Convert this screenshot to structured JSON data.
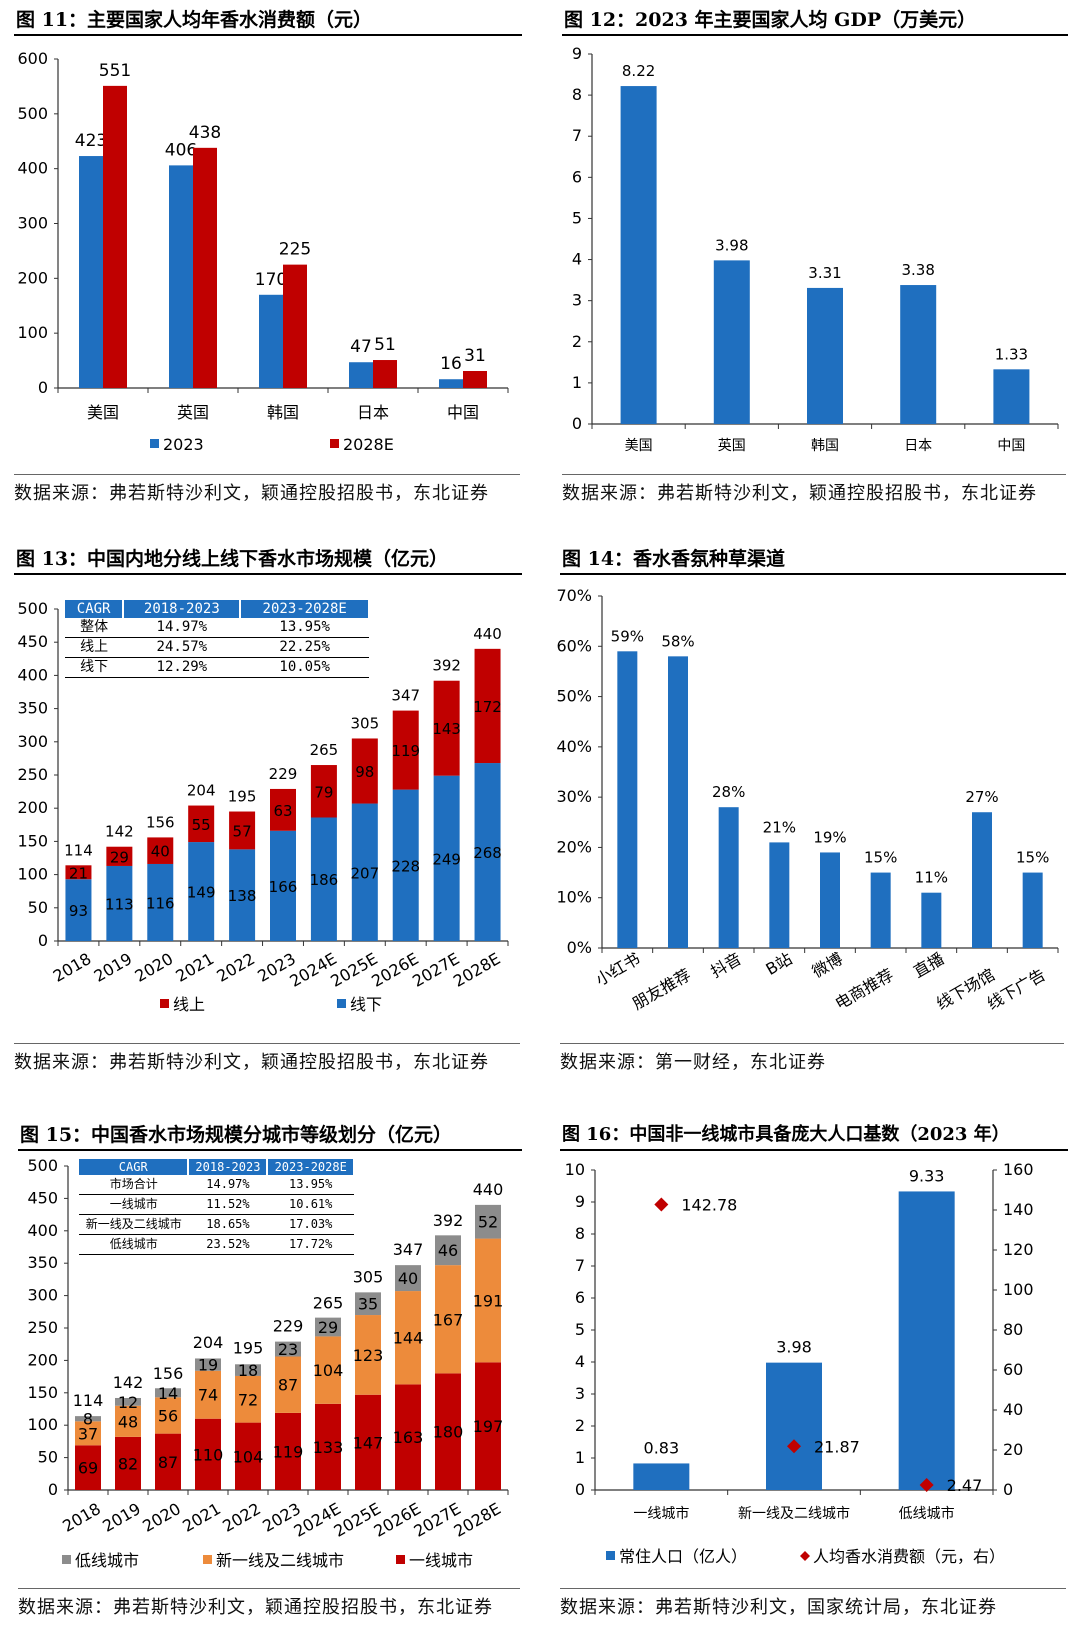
{
  "panels": [
    {
      "title": "图 11：主要国家人均年香水消费额（元）",
      "source": "数据来源：弗若斯特沙利文，颖通控股招股书，东北证券"
    },
    {
      "title": "图 12：2023 年主要国家人均 GDP（万美元）",
      "source": "数据来源：弗若斯特沙利文，颖通控股招股书，东北证券"
    },
    {
      "title": "图 13：中国内地分线上线下香水市场规模（亿元）",
      "source": "数据来源：弗若斯特沙利文，颖通控股招股书，东北证券"
    },
    {
      "title": "图 14：香水香氛种草渠道",
      "source": "数据来源：第一财经，东北证券"
    },
    {
      "title": "图 15：中国香水市场规模分城市等级划分（亿元）",
      "source": "数据来源：弗若斯特沙利文，颖通控股招股书，东北证券"
    },
    {
      "title": "图 16：中国非一线城市具备庞大人口基数（2023 年）",
      "source": "数据来源：弗若斯特沙利文，国家统计局，东北证券"
    }
  ],
  "chart_data": [
    {
      "type": "bar",
      "categories": [
        "美国",
        "英国",
        "韩国",
        "日本",
        "中国"
      ],
      "series": [
        {
          "name": "2023",
          "color": "#1f6fbf",
          "values": [
            423,
            406,
            170,
            47,
            16
          ]
        },
        {
          "name": "2028E",
          "color": "#c00000",
          "values": [
            551,
            438,
            225,
            51,
            31
          ]
        }
      ],
      "ylim": [
        0,
        600
      ],
      "y_ticks": [
        "0",
        "100",
        "200",
        "300",
        "400",
        "500",
        "600"
      ],
      "legend": "bottom"
    },
    {
      "type": "bar",
      "categories": [
        "美国",
        "英国",
        "韩国",
        "日本",
        "中国"
      ],
      "series": [
        {
          "color": "#1f6fbf",
          "values": [
            8.22,
            3.98,
            3.31,
            3.38,
            1.33
          ]
        }
      ],
      "ylim": [
        0,
        9
      ],
      "y_ticks": [
        "0",
        "1",
        "2",
        "3",
        "4",
        "5",
        "6",
        "7",
        "8",
        "9"
      ]
    },
    {
      "type": "bar",
      "stacked": true,
      "categories": [
        "2018",
        "2019",
        "2020",
        "2021",
        "2022",
        "2023",
        "2024E",
        "2025E",
        "2026E",
        "2027E",
        "2028E"
      ],
      "series": [
        {
          "name": "线下",
          "color": "#1f6fbf",
          "values": [
            93,
            113,
            116,
            149,
            138,
            166,
            186,
            207,
            228,
            249,
            268
          ]
        },
        {
          "name": "线上",
          "color": "#c00000",
          "values": [
            21,
            29,
            40,
            55,
            57,
            63,
            79,
            98,
            119,
            143,
            172
          ]
        }
      ],
      "totals": [
        114,
        142,
        156,
        204,
        195,
        229,
        265,
        305,
        347,
        392,
        440
      ],
      "ylim": [
        0,
        500
      ],
      "y_ticks": [
        "0",
        "50",
        "100",
        "150",
        "200",
        "250",
        "300",
        "350",
        "400",
        "450",
        "500"
      ],
      "legend": "bottom",
      "table": {
        "header": [
          "CAGR",
          "2018-2023",
          "2023-2028E"
        ],
        "rows": [
          [
            "整体",
            "14.97%",
            "13.95%"
          ],
          [
            "线上",
            "24.57%",
            "22.25%"
          ],
          [
            "线下",
            "12.29%",
            "10.05%"
          ]
        ]
      }
    },
    {
      "type": "bar",
      "categories": [
        "小红书",
        "朋友推荐",
        "抖音",
        "B站",
        "微博",
        "电商推荐",
        "直播",
        "线下场馆",
        "线下广告"
      ],
      "series": [
        {
          "color": "#1f6fbf",
          "values": [
            59,
            58,
            28,
            21,
            19,
            15,
            11,
            27,
            15
          ]
        }
      ],
      "value_suffix": "%",
      "ylim": [
        0,
        70
      ],
      "y_ticks": [
        "0%",
        "10%",
        "20%",
        "30%",
        "40%",
        "50%",
        "60%",
        "70%"
      ]
    },
    {
      "type": "bar",
      "stacked": true,
      "categories": [
        "2018",
        "2019",
        "2020",
        "2021",
        "2022",
        "2023",
        "2024E",
        "2025E",
        "2026E",
        "2027E",
        "2028E"
      ],
      "series": [
        {
          "name": "一线城市",
          "color": "#c00000",
          "values": [
            69,
            82,
            87,
            110,
            104,
            119,
            133,
            147,
            163,
            180,
            197
          ]
        },
        {
          "name": "新一线及二线城市",
          "color": "#ed8b3b",
          "values": [
            37,
            48,
            56,
            74,
            72,
            87,
            104,
            123,
            144,
            167,
            191
          ]
        },
        {
          "name": "低线城市",
          "color": "#8c8c8c",
          "values": [
            8,
            12,
            14,
            19,
            18,
            23,
            29,
            35,
            40,
            46,
            52
          ]
        }
      ],
      "totals": [
        114,
        142,
        156,
        204,
        195,
        229,
        265,
        305,
        347,
        392,
        440
      ],
      "ylim": [
        0,
        500
      ],
      "y_ticks": [
        "0",
        "50",
        "100",
        "150",
        "200",
        "250",
        "300",
        "350",
        "400",
        "450",
        "500"
      ],
      "legend": "bottom",
      "table": {
        "header": [
          "CAGR",
          "2018-2023",
          "2023-2028E"
        ],
        "rows": [
          [
            "市场合计",
            "14.97%",
            "13.95%"
          ],
          [
            "一线城市",
            "11.52%",
            "10.61%"
          ],
          [
            "新一线及二线城市",
            "18.65%",
            "17.03%"
          ],
          [
            "低线城市",
            "23.52%",
            "17.72%"
          ]
        ]
      }
    },
    {
      "type": "bar",
      "categories": [
        "一线城市",
        "新一线及二线城市",
        "低线城市"
      ],
      "series": [
        {
          "name": "常住人口（亿人）",
          "type": "bar",
          "color": "#1f6fbf",
          "values": [
            0.83,
            3.98,
            9.33
          ]
        },
        {
          "name": "人均香水消费额（元，右）",
          "type": "scatter",
          "axis": "right",
          "color": "#c00000",
          "marker": "diamond",
          "values": [
            142.78,
            21.87,
            2.47
          ]
        }
      ],
      "ylim": [
        0,
        10
      ],
      "y_ticks": [
        "0",
        "1",
        "2",
        "3",
        "4",
        "5",
        "6",
        "7",
        "8",
        "9",
        "10"
      ],
      "y2lim": [
        0,
        160
      ],
      "y2_ticks": [
        "0",
        "20",
        "40",
        "60",
        "80",
        "100",
        "120",
        "140",
        "160"
      ],
      "legend": "bottom"
    }
  ]
}
